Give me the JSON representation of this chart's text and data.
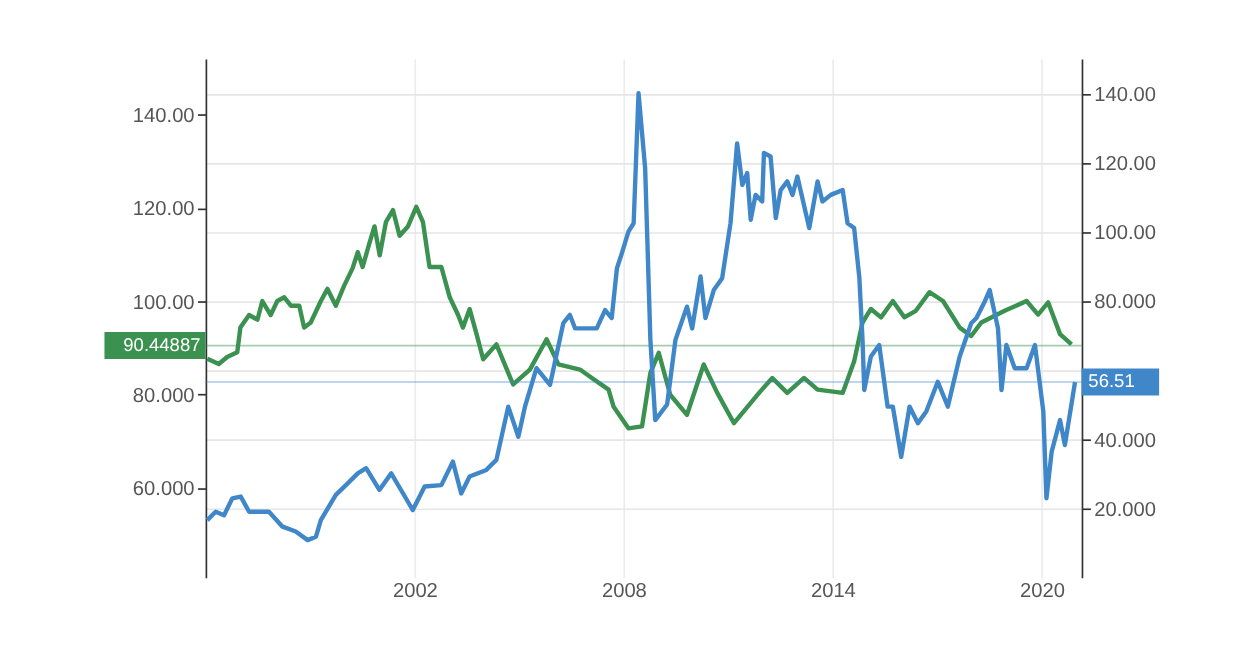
{
  "chart_data": {
    "type": "line",
    "xlim": [
      1996,
      2021.15
    ],
    "xticks": [
      {
        "value": 2002,
        "label": "2002"
      },
      {
        "value": 2008,
        "label": "2008"
      },
      {
        "value": 2014,
        "label": "2014"
      },
      {
        "value": 2020,
        "label": "2020"
      }
    ],
    "ylim": [
      40.7,
      152
    ],
    "yticks": [
      {
        "value": 60,
        "label": "60.000"
      },
      {
        "value": 80,
        "label": "80.000"
      },
      {
        "value": 100,
        "label": "100.00"
      },
      {
        "value": 120,
        "label": "120.00"
      },
      {
        "value": 140,
        "label": "140.00"
      }
    ],
    "y2lim": [
      0,
      150
    ],
    "y2ticks": [
      {
        "value": 20,
        "label": "20.000"
      },
      {
        "value": 40,
        "label": "40.000"
      },
      {
        "value": 60,
        "label": null
      },
      {
        "value": 80,
        "label": "80.000"
      },
      {
        "value": 100,
        "label": "100.00"
      },
      {
        "value": 120,
        "label": "120.00"
      },
      {
        "value": 140,
        "label": "140.00"
      }
    ],
    "grid": true,
    "legend": false,
    "line_style": "solid",
    "marker": "none",
    "series": [
      {
        "color": "#3a9150",
        "axis": "y",
        "x": [
          1996.05,
          1996.38,
          1996.62,
          1996.91,
          1997.0,
          1997.25,
          1997.49,
          1997.63,
          1997.87,
          1998.06,
          1998.26,
          1998.45,
          1998.69,
          1998.83,
          1999.02,
          1999.31,
          1999.5,
          1999.74,
          1999.98,
          2000.22,
          2000.37,
          2000.51,
          2000.7,
          2000.85,
          2001.0,
          2001.18,
          2001.38,
          2001.57,
          2001.81,
          2002.05,
          2002.24,
          2002.43,
          2002.77,
          2003.01,
          2003.25,
          2003.39,
          2003.58,
          2003.78,
          2003.97,
          2004.35,
          2004.83,
          2005.31,
          2005.79,
          2006.13,
          2006.75,
          2007.09,
          2007.57,
          2007.71,
          2008.14,
          2008.53,
          2008.77,
          2009.01,
          2009.34,
          2009.82,
          2010.3,
          2010.69,
          2011.17,
          2011.89,
          2012.27,
          2012.7,
          2013.18,
          2013.57,
          2014.29,
          2014.62,
          2014.86,
          2015.1,
          2015.39,
          2015.73,
          2016.06,
          2016.39,
          2016.78,
          2017.17,
          2017.65,
          2017.98,
          2018.27,
          2018.94,
          2019.57,
          2019.9,
          2020.19,
          2020.53,
          2020.86
        ],
        "values": [
          87.6,
          86.5,
          88,
          89,
          94.3,
          97,
          96,
          100,
          97,
          100,
          100.8,
          99,
          99,
          94.3,
          95.4,
          100,
          102.6,
          99,
          103.3,
          107,
          110.5,
          107.3,
          112.3,
          116,
          109.8,
          117,
          119.5,
          114,
          116,
          120.2,
          117,
          107.3,
          107.3,
          100.8,
          97,
          94.3,
          98.3,
          92.9,
          87.5,
          90.7,
          82.1,
          85.3,
          91.8,
          86.4,
          85.3,
          83.5,
          81,
          77.4,
          72.7,
          73.1,
          84.6,
          88.9,
          79.9,
          75.6,
          86.4,
          80.3,
          73.8,
          80.3,
          83.5,
          80.3,
          83.5,
          81,
          80.3,
          87.1,
          95.4,
          98.3,
          96.5,
          100,
          96.5,
          97.9,
          101.9,
          100,
          94.3,
          92.5,
          95.4,
          97.9,
          100,
          97.1,
          99.7,
          92.9,
          90.7
        ]
      },
      {
        "color": "#3f87c9",
        "axis": "y2",
        "x": [
          1996.05,
          1996.29,
          1996.53,
          1996.77,
          1997.01,
          1997.25,
          1997.82,
          1998.21,
          1998.59,
          1998.93,
          1999.17,
          1999.31,
          1999.74,
          2000.03,
          2000.37,
          2000.61,
          2000.99,
          2001.33,
          2001.81,
          2001.95,
          2002.29,
          2002.77,
          2003.1,
          2003.34,
          2003.58,
          2004.06,
          2004.35,
          2004.69,
          2004.98,
          2005.17,
          2005.5,
          2005.89,
          2006.27,
          2006.46,
          2006.61,
          2007.23,
          2007.47,
          2007.66,
          2007.81,
          2007.95,
          2008.14,
          2008.29,
          2008.43,
          2008.62,
          2008.77,
          2008.91,
          2009.25,
          2009.49,
          2009.82,
          2009.97,
          2010.21,
          2010.35,
          2010.59,
          2010.83,
          2011.07,
          2011.26,
          2011.41,
          2011.55,
          2011.65,
          2011.79,
          2011.98,
          2012.03,
          2012.22,
          2012.37,
          2012.51,
          2012.7,
          2012.85,
          2012.99,
          2013.33,
          2013.57,
          2013.71,
          2013.95,
          2014.29,
          2014.43,
          2014.62,
          2014.77,
          2014.86,
          2014.91,
          2015.1,
          2015.34,
          2015.58,
          2015.73,
          2015.97,
          2016.21,
          2016.45,
          2016.69,
          2017.02,
          2017.31,
          2017.65,
          2017.98,
          2018.13,
          2018.37,
          2018.51,
          2018.75,
          2018.85,
          2018.99,
          2019.23,
          2019.57,
          2019.81,
          2020.05,
          2020.14,
          2020.29,
          2020.53,
          2020.67,
          2020.96
        ],
        "values": [
          16.6,
          19,
          18,
          22.9,
          23.4,
          19,
          19,
          14.7,
          13.3,
          10.8,
          11.8,
          16.6,
          23.9,
          26.7,
          30.1,
          31.6,
          25.3,
          30.1,
          21.9,
          19.5,
          26.3,
          26.7,
          33.5,
          24.3,
          29.2,
          31.1,
          34,
          49.4,
          40.7,
          49.4,
          60.5,
          55.7,
          73.5,
          75.9,
          72,
          72,
          77.3,
          75,
          89.4,
          93.7,
          100,
          102.4,
          140,
          118.3,
          68.7,
          45.5,
          50,
          68.7,
          78.3,
          72,
          87,
          75,
          83.1,
          86.5,
          102.4,
          125.5,
          113.5,
          116.9,
          103.4,
          110.6,
          108.7,
          122.7,
          121.7,
          103.9,
          112,
          114.5,
          110.6,
          115.9,
          101,
          114.5,
          108.7,
          110.6,
          112,
          102.4,
          101,
          86.5,
          68.7,
          54.2,
          63.9,
          67.2,
          49.4,
          49.4,
          34.9,
          49.4,
          44.6,
          48,
          56.6,
          49.4,
          63.9,
          73.5,
          75,
          79.8,
          83.1,
          72,
          54.2,
          67.2,
          60.5,
          60.5,
          67.2,
          48,
          22.9,
          36.4,
          45.5,
          38.3,
          56.5
        ]
      }
    ],
    "ref_lines": [
      {
        "axis": "y",
        "value": 90.44887,
        "label": "90.44887",
        "color": "#3a9150"
      },
      {
        "axis": "y2",
        "value": 56.51,
        "label": "56.51",
        "color": "#3f87c9"
      }
    ]
  }
}
